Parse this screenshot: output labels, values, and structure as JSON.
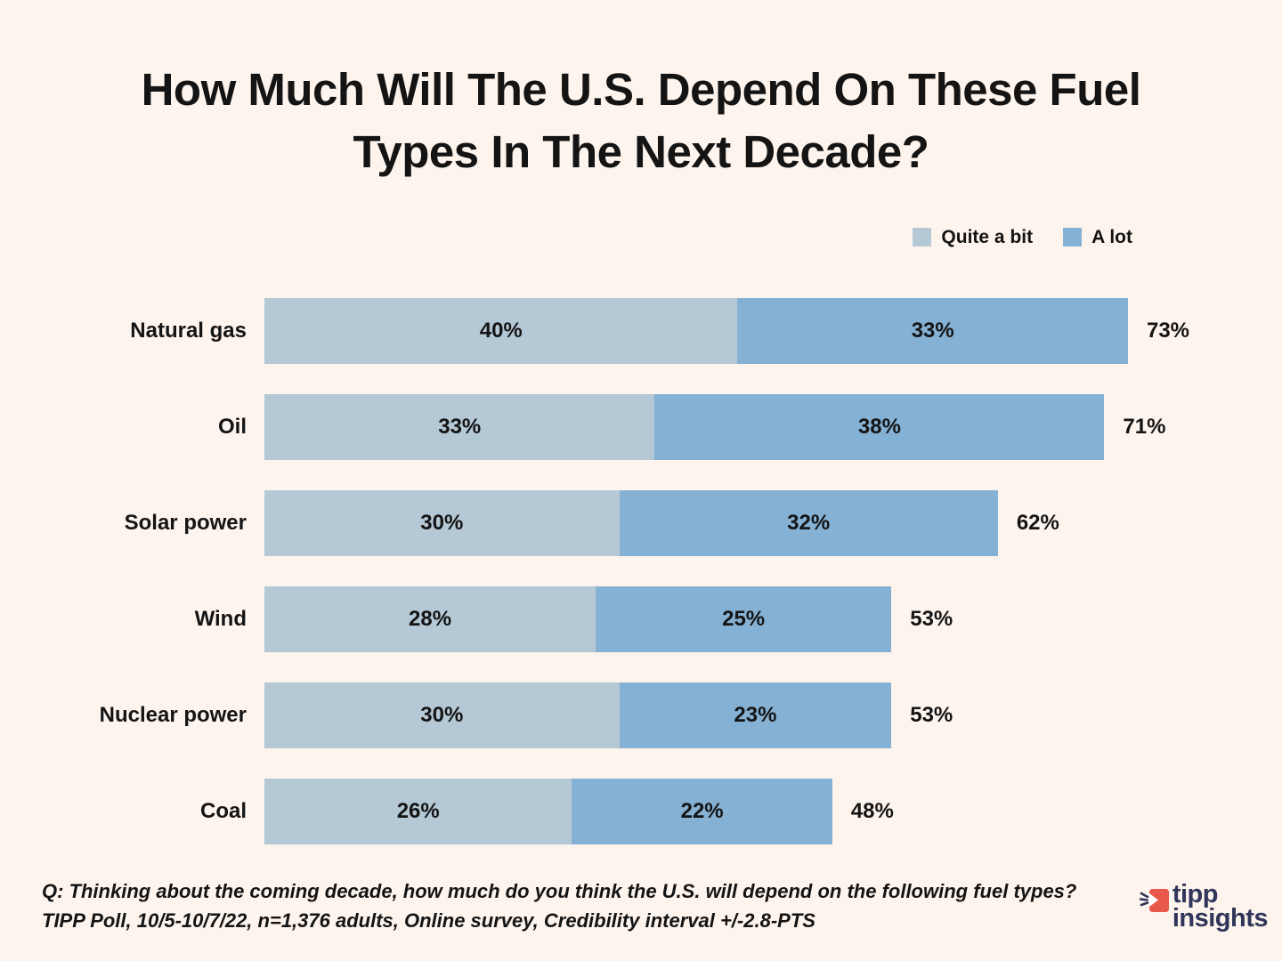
{
  "title_line1": "How Much Will The U.S. Depend On These Fuel",
  "title_line2": "Types In The Next Decade?",
  "chart_data": {
    "type": "bar",
    "orientation": "horizontal",
    "stacked": true,
    "title": "How Much Will The U.S. Depend On These Fuel Types In The Next Decade?",
    "categories": [
      "Natural gas",
      "Oil",
      "Solar power",
      "Wind",
      "Nuclear power",
      "Coal"
    ],
    "series": [
      {
        "name": "Quite a bit",
        "color": "#b4c8d5",
        "values": [
          40,
          33,
          30,
          28,
          30,
          26
        ]
      },
      {
        "name": "A lot",
        "color": "#85b1d4",
        "values": [
          33,
          38,
          32,
          25,
          23,
          22
        ]
      }
    ],
    "totals": [
      73,
      71,
      62,
      53,
      53,
      48
    ],
    "value_suffix": "%",
    "xlim": [
      0,
      80
    ],
    "grid": false,
    "legend_position": "top-right"
  },
  "footer": {
    "question": "Q:  Thinking about the coming decade, how much do you think the U.S. will depend on the following fuel types?",
    "source": "TIPP Poll, 10/5-10/7/22, n=1,376 adults, Online survey, Credibility interval +/-2.8-PTS"
  },
  "logo": {
    "line1": "tipp",
    "line2": "insights"
  },
  "colors": {
    "background": "#fdf4ed",
    "bar_light": "#b4c8d5",
    "bar_dark": "#85b1d4",
    "text": "#141414",
    "logo_navy": "#30355a",
    "logo_coral": "#e8584b"
  }
}
